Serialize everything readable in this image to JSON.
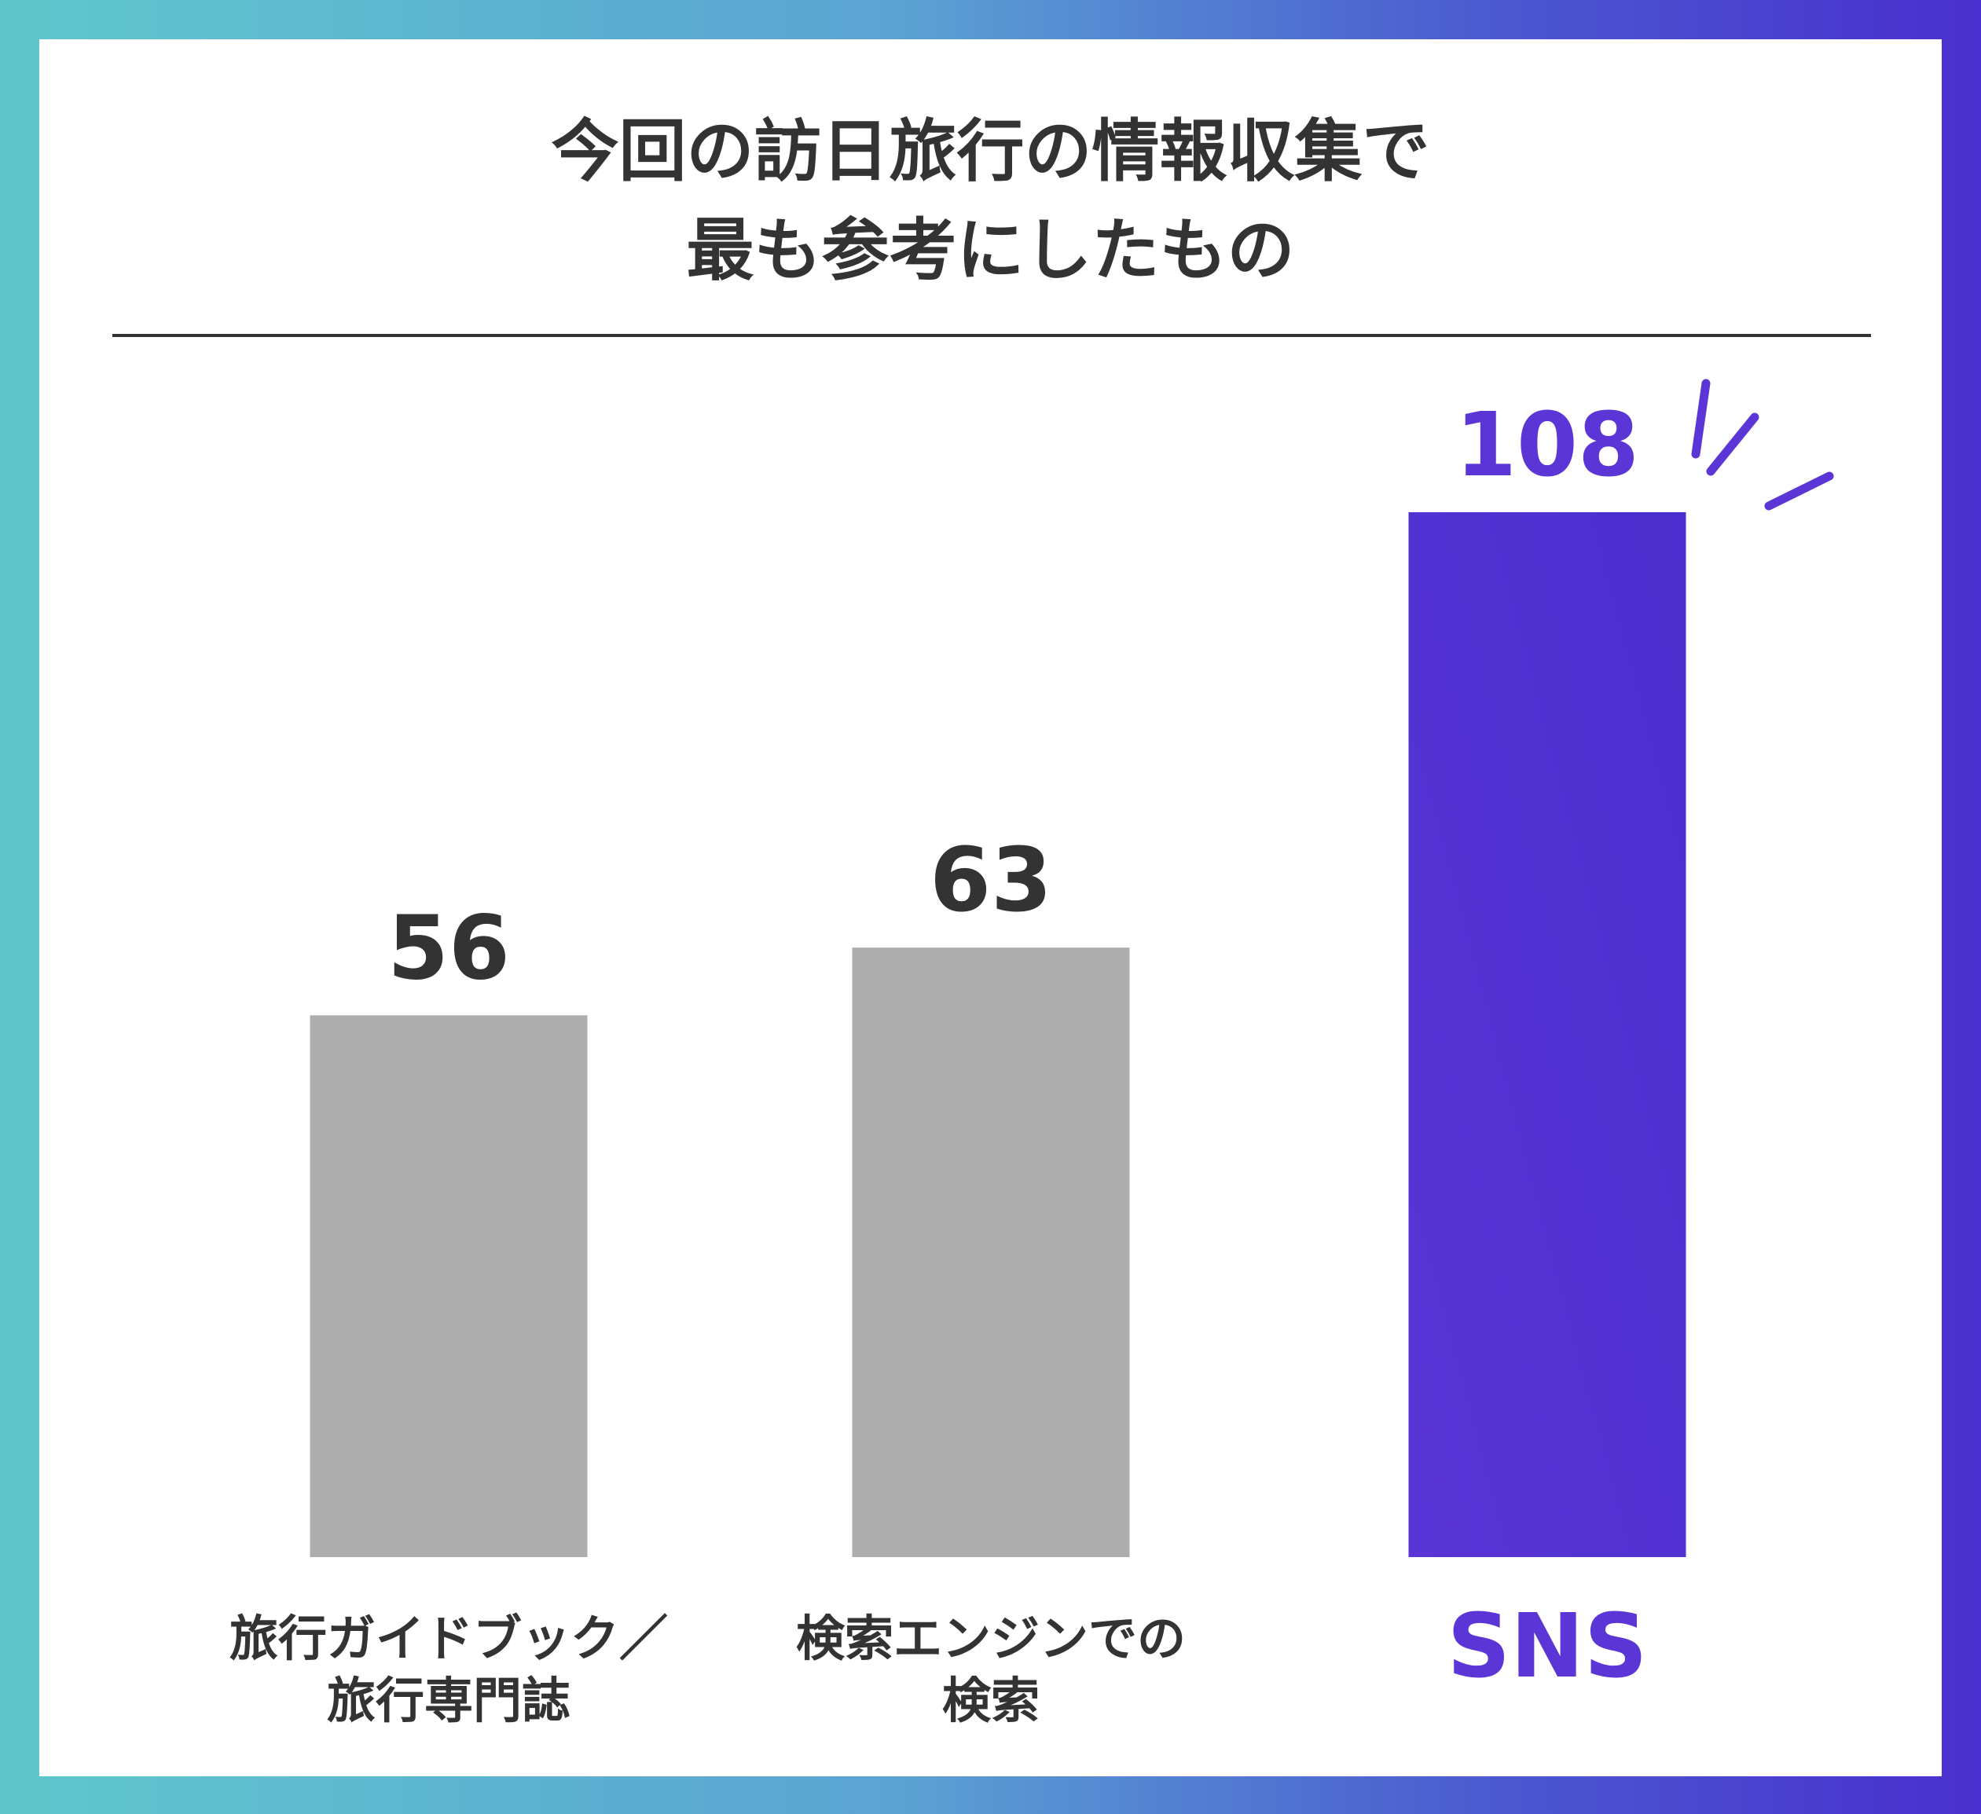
{
  "chart_data": {
    "type": "bar",
    "title": [
      "今回の訪日旅行の情報収集で",
      "最も参考にしたもの"
    ],
    "categories": [
      [
        "旅行ガイドブック／",
        "旅行専門誌"
      ],
      [
        "検索エンジンでの",
        "検索"
      ],
      [
        "SNS"
      ]
    ],
    "values": [
      56,
      63,
      108
    ],
    "value_labels": [
      "56",
      "63",
      "108"
    ],
    "highlight_index": 2,
    "ylim": [
      0,
      108
    ],
    "grid": false,
    "legend": "none",
    "colors": {
      "default_bar": "#adadad",
      "highlight_bar": "#4a2fce",
      "highlight_text": "#5b35d6",
      "label_text": "#333333"
    }
  }
}
